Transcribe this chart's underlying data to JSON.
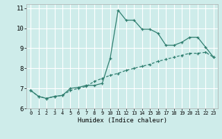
{
  "title": "",
  "xlabel": "Humidex (Indice chaleur)",
  "ylabel": "",
  "background_color": "#ceecea",
  "grid_color": "#ffffff",
  "line_color": "#2e7d6e",
  "x_values": [
    0,
    1,
    2,
    3,
    4,
    5,
    6,
    7,
    8,
    9,
    10,
    11,
    12,
    13,
    14,
    15,
    16,
    17,
    18,
    19,
    20,
    21,
    22,
    23
  ],
  "line1_y": [
    6.9,
    6.6,
    6.5,
    6.6,
    6.65,
    7.0,
    7.05,
    7.15,
    7.15,
    7.25,
    8.5,
    10.9,
    10.4,
    10.4,
    9.95,
    9.95,
    9.75,
    9.15,
    9.15,
    9.3,
    9.55,
    9.55,
    9.05,
    8.55
  ],
  "line2_y": [
    6.9,
    6.6,
    6.5,
    6.6,
    6.65,
    6.9,
    7.0,
    7.1,
    7.35,
    7.5,
    7.65,
    7.75,
    7.9,
    8.0,
    8.1,
    8.2,
    8.35,
    8.45,
    8.55,
    8.65,
    8.75,
    8.75,
    8.8,
    8.55
  ],
  "ylim": [
    6.0,
    11.2
  ],
  "xlim": [
    -0.5,
    23.5
  ],
  "yticks": [
    6,
    7,
    8,
    9,
    10,
    11
  ],
  "xticks": [
    0,
    1,
    2,
    3,
    4,
    5,
    6,
    7,
    8,
    9,
    10,
    11,
    12,
    13,
    14,
    15,
    16,
    17,
    18,
    19,
    20,
    21,
    22,
    23
  ]
}
